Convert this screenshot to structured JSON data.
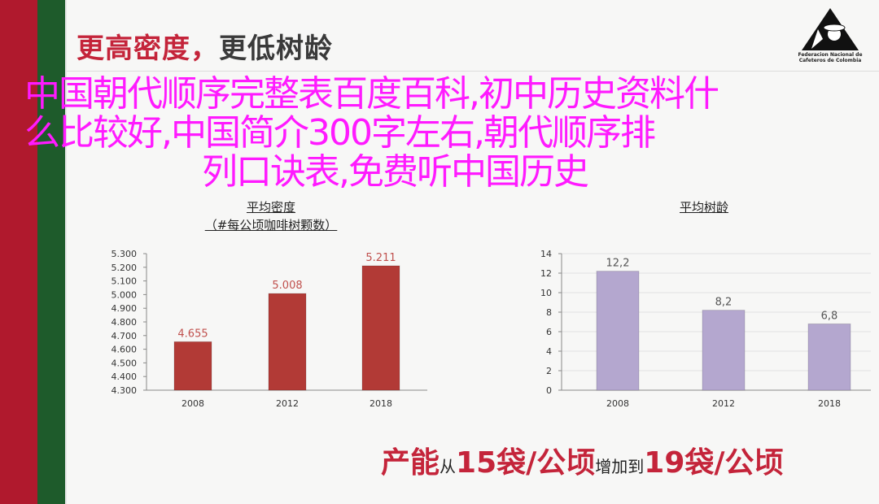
{
  "slide": {
    "title_red": "更高密度，",
    "title_dark": "更低树龄",
    "logo_text_1": "Federacion Nacional de",
    "logo_text_2": "Cafeteros de Colombia",
    "bottom": {
      "part1": "产能",
      "part2": "从",
      "part3": "15袋/公顷",
      "part4": "增加到",
      "part5": "19袋/公顷"
    }
  },
  "overlay": {
    "line1": "中国朝代顺序完整表百度百科,初中历史资料什",
    "line2": "么比较好,中国简介300字左右,朝代顺序排",
    "line3": "列口诀表,免费听中国历史",
    "color": "#ff1aff"
  },
  "colors": {
    "red": "#b0192d",
    "green": "#1e5b2b",
    "bar_left": "#b23a36",
    "bar_right": "#b4a7cf"
  },
  "chart_data": [
    {
      "type": "bar",
      "title": "平均密度",
      "subtitle": "（#每公顷咖啡树颗数）",
      "categories": [
        "2008",
        "2012",
        "2018"
      ],
      "values": [
        4.655,
        5.008,
        5.211
      ],
      "data_labels": [
        "4.655",
        "5.008",
        "5.211"
      ],
      "ylim": [
        4.3,
        5.3
      ],
      "yticks": [
        "4.300",
        "4.400",
        "4.500",
        "4.600",
        "4.700",
        "4.800",
        "4.900",
        "5.000",
        "5.100",
        "5.200",
        "5.300"
      ],
      "grid": false
    },
    {
      "type": "bar",
      "title": "平均树龄",
      "categories": [
        "2008",
        "2012",
        "2018"
      ],
      "values": [
        12.2,
        8.2,
        6.8
      ],
      "data_labels": [
        "12,2",
        "8,2",
        "6,8"
      ],
      "ylim": [
        0,
        14
      ],
      "yticks": [
        "0",
        "2",
        "4",
        "6",
        "8",
        "10",
        "12",
        "14"
      ],
      "grid": true
    }
  ]
}
